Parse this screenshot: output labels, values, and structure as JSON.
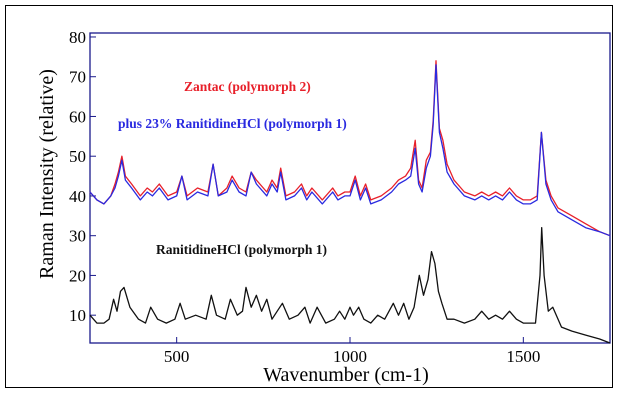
{
  "chart_data": {
    "type": "line",
    "xlabel": "Wavenumber (cm-1)",
    "ylabel": "Raman Intensity (relative)",
    "xlim": [
      250,
      1750
    ],
    "ylim": [
      3,
      81
    ],
    "xticks": [
      500,
      1000,
      1500
    ],
    "yticks": [
      10,
      20,
      30,
      40,
      50,
      60,
      70,
      80
    ],
    "grid": false,
    "legend": "none",
    "annotations": [
      {
        "text": "Zantac (polymorph 2)",
        "color": "#e8202a"
      },
      {
        "text": "plus 23% RanitidineHCl (polymorph 1)",
        "color": "#2a2ae0"
      },
      {
        "text": "RanitidineHCl (polymorph 1)",
        "color": "#111111"
      }
    ],
    "series": [
      {
        "color": "#e8202a",
        "x": [
          250,
          270,
          290,
          310,
          322,
          332,
          342,
          352,
          370,
          395,
          415,
          430,
          450,
          475,
          500,
          515,
          530,
          560,
          590,
          605,
          620,
          645,
          660,
          680,
          700,
          715,
          730,
          760,
          775,
          790,
          800,
          815,
          840,
          860,
          875,
          890,
          920,
          950,
          965,
          985,
          1000,
          1015,
          1030,
          1045,
          1060,
          1090,
          1120,
          1140,
          1160,
          1175,
          1188,
          1198,
          1208,
          1220,
          1232,
          1240,
          1248,
          1258,
          1268,
          1280,
          1300,
          1330,
          1360,
          1380,
          1400,
          1420,
          1440,
          1460,
          1480,
          1500,
          1520,
          1540,
          1552,
          1565,
          1580,
          1600,
          1640,
          1680,
          1720,
          1750
        ],
        "y": [
          41,
          39,
          38,
          40,
          43,
          46,
          50,
          45,
          43,
          40,
          42,
          41,
          43,
          40,
          41,
          45,
          40,
          42,
          41,
          48,
          40,
          42,
          45,
          42,
          41,
          46,
          44,
          41,
          44,
          42,
          47,
          40,
          41,
          43,
          40,
          42,
          39,
          42,
          40,
          41,
          41,
          45,
          40,
          43,
          39,
          40,
          42,
          44,
          45,
          47,
          54,
          44,
          42,
          49,
          51,
          59,
          74,
          57,
          54,
          48,
          44,
          41,
          40,
          41,
          40,
          41,
          40,
          42,
          40,
          39,
          39,
          40,
          56,
          44,
          40,
          37,
          35,
          33,
          31,
          30
        ]
      },
      {
        "color": "#2a2ae0",
        "x": [
          250,
          270,
          290,
          310,
          322,
          332,
          342,
          352,
          370,
          395,
          415,
          430,
          450,
          475,
          500,
          515,
          530,
          560,
          590,
          605,
          620,
          645,
          660,
          680,
          700,
          715,
          730,
          760,
          775,
          790,
          800,
          815,
          840,
          860,
          875,
          890,
          920,
          950,
          965,
          985,
          1000,
          1015,
          1030,
          1045,
          1060,
          1090,
          1120,
          1140,
          1160,
          1175,
          1188,
          1198,
          1208,
          1220,
          1232,
          1240,
          1248,
          1258,
          1268,
          1280,
          1300,
          1330,
          1360,
          1380,
          1400,
          1420,
          1440,
          1460,
          1480,
          1500,
          1520,
          1540,
          1552,
          1565,
          1580,
          1600,
          1640,
          1680,
          1720,
          1750
        ],
        "y": [
          41,
          39,
          38,
          40,
          42,
          45,
          49,
          44,
          42,
          39,
          41,
          40,
          42,
          39,
          40,
          45,
          39,
          41,
          40,
          48,
          40,
          41,
          44,
          41,
          40,
          46,
          43,
          40,
          43,
          41,
          46,
          39,
          40,
          42,
          39,
          41,
          38,
          41,
          39,
          40,
          40,
          44,
          39,
          42,
          38,
          39,
          41,
          43,
          44,
          45,
          52,
          43,
          41,
          47,
          50,
          58,
          73,
          56,
          52,
          46,
          43,
          40,
          39,
          40,
          39,
          40,
          39,
          41,
          39,
          38,
          38,
          39,
          56,
          43,
          39,
          36,
          34,
          32,
          31,
          30
        ]
      },
      {
        "color": "#111111",
        "x": [
          250,
          270,
          290,
          305,
          318,
          328,
          338,
          348,
          365,
          390,
          410,
          425,
          445,
          470,
          495,
          510,
          525,
          555,
          585,
          600,
          615,
          640,
          655,
          675,
          690,
          700,
          715,
          730,
          745,
          760,
          775,
          790,
          805,
          825,
          850,
          870,
          885,
          905,
          930,
          955,
          970,
          985,
          1000,
          1010,
          1025,
          1040,
          1060,
          1080,
          1100,
          1125,
          1140,
          1155,
          1170,
          1185,
          1200,
          1212,
          1225,
          1235,
          1245,
          1255,
          1265,
          1280,
          1300,
          1330,
          1360,
          1380,
          1400,
          1420,
          1440,
          1460,
          1480,
          1500,
          1520,
          1535,
          1548,
          1553,
          1560,
          1572,
          1585,
          1595,
          1610,
          1640,
          1680,
          1720,
          1750
        ],
        "y": [
          10,
          8,
          8,
          9,
          14,
          11,
          16,
          17,
          12,
          9,
          8,
          12,
          9,
          8,
          9,
          13,
          9,
          10,
          9,
          15,
          10,
          9,
          14,
          10,
          11,
          17,
          12,
          15,
          11,
          14,
          9,
          11,
          13,
          9,
          10,
          12,
          8,
          12,
          8,
          9,
          11,
          9,
          12,
          10,
          12,
          9,
          8,
          10,
          9,
          13,
          10,
          13,
          9,
          12,
          20,
          15,
          19,
          26,
          23,
          16,
          13,
          9,
          9,
          8,
          9,
          11,
          9,
          10,
          9,
          11,
          9,
          8,
          8,
          8,
          20,
          32,
          20,
          11,
          12,
          10,
          7,
          6,
          5,
          4,
          3
        ]
      }
    ]
  }
}
